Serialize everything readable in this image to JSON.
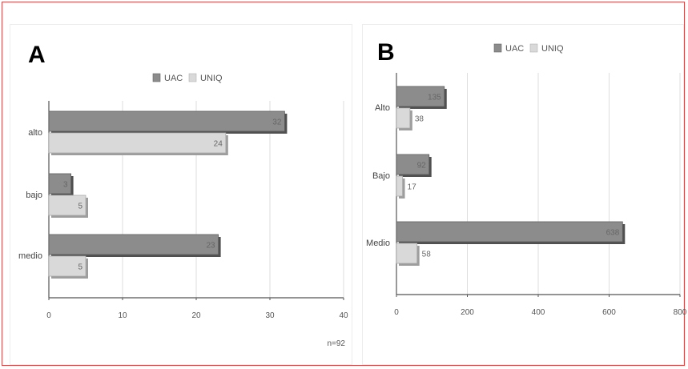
{
  "chart_data": [
    {
      "panel": "A",
      "type": "bar",
      "orientation": "horizontal",
      "categories": [
        "alto",
        "bajo",
        "medio"
      ],
      "series": [
        {
          "name": "UAC",
          "values": [
            32,
            3,
            23
          ],
          "color": "#8c8c8c"
        },
        {
          "name": "UNIQ",
          "values": [
            24,
            5,
            5
          ],
          "color": "#d9d9d9"
        }
      ],
      "xlim": [
        0,
        40
      ],
      "xticks": [
        0,
        10,
        20,
        30,
        40
      ],
      "grid": true,
      "legend": "top",
      "note": "n=92"
    },
    {
      "panel": "B",
      "type": "bar",
      "orientation": "horizontal",
      "categories": [
        "Alto",
        "Bajo",
        "Medio"
      ],
      "series": [
        {
          "name": "UAC",
          "values": [
            135,
            92,
            638
          ],
          "color": "#8c8c8c"
        },
        {
          "name": "UNIQ",
          "values": [
            38,
            17,
            58
          ],
          "color": "#d9d9d9"
        }
      ],
      "xlim": [
        0,
        800
      ],
      "xticks": [
        0,
        200,
        400,
        600,
        800
      ],
      "grid": true,
      "legend": "top"
    }
  ]
}
